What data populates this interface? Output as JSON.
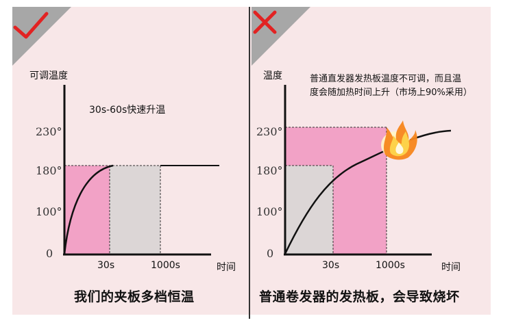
{
  "colors": {
    "panel_bg": "#f8e7e8",
    "pink_fill": "#f2a2c6",
    "gray_fill": "#dcd6d6",
    "good_mark": "#e22222",
    "bad_mark": "#e22222",
    "corner_triangle": "#a7a7a7"
  },
  "left": {
    "mark_icon": "check-icon",
    "y_axis_label": "可调温度",
    "annotation": "30s-60s快速升温",
    "y_ticks": [
      "230°",
      "180°",
      "100°",
      "0"
    ],
    "x_ticks": [
      "30s",
      "1000s"
    ],
    "x_axis_label": "时间",
    "caption": "我们的夹板多档恒温"
  },
  "right": {
    "mark_icon": "cross-icon",
    "y_axis_label": "温度",
    "annotation": "普通直发器发热板温度不可调，而且温度会随加热时间上升（市场上90%采用）",
    "y_ticks": [
      "230°",
      "180°",
      "100°",
      "0"
    ],
    "x_ticks": [
      "30s",
      "1000s"
    ],
    "x_axis_label": "时间",
    "caption": "普通卷发器的发热板，会导致烧坏",
    "flame_icon": "flame-icon"
  }
}
